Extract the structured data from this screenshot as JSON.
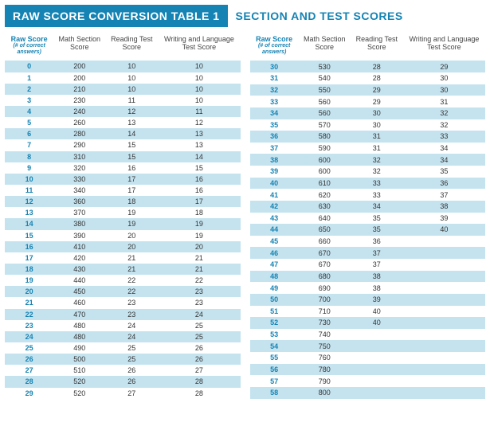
{
  "colors": {
    "brand": "#1583b3",
    "stripe": "#c4e3ef",
    "text": "#333333",
    "header_dark": "#444444"
  },
  "heading": {
    "title_boxed": "RAW SCORE CONVERSION TABLE 1",
    "title_plain": "SECTION AND TEST SCORES"
  },
  "columns": {
    "c1_main": "Raw Score",
    "c1_sub": "(# of correct answers)",
    "c2": "Math Section Score",
    "c3a": "Reading Test Score",
    "c3b": "Reading Test Score",
    "c4": "Writing and Language Test Score"
  },
  "left_rows": [
    {
      "raw": "0",
      "math": "200",
      "read": "10",
      "write": "10"
    },
    {
      "raw": "1",
      "math": "200",
      "read": "10",
      "write": "10"
    },
    {
      "raw": "2",
      "math": "210",
      "read": "10",
      "write": "10"
    },
    {
      "raw": "3",
      "math": "230",
      "read": "11",
      "write": "10"
    },
    {
      "raw": "4",
      "math": "240",
      "read": "12",
      "write": "11"
    },
    {
      "raw": "5",
      "math": "260",
      "read": "13",
      "write": "12"
    },
    {
      "raw": "6",
      "math": "280",
      "read": "14",
      "write": "13"
    },
    {
      "raw": "7",
      "math": "290",
      "read": "15",
      "write": "13"
    },
    {
      "raw": "8",
      "math": "310",
      "read": "15",
      "write": "14"
    },
    {
      "raw": "9",
      "math": "320",
      "read": "16",
      "write": "15"
    },
    {
      "raw": "10",
      "math": "330",
      "read": "17",
      "write": "16"
    },
    {
      "raw": "11",
      "math": "340",
      "read": "17",
      "write": "16"
    },
    {
      "raw": "12",
      "math": "360",
      "read": "18",
      "write": "17"
    },
    {
      "raw": "13",
      "math": "370",
      "read": "19",
      "write": "18"
    },
    {
      "raw": "14",
      "math": "380",
      "read": "19",
      "write": "19"
    },
    {
      "raw": "15",
      "math": "390",
      "read": "20",
      "write": "19"
    },
    {
      "raw": "16",
      "math": "410",
      "read": "20",
      "write": "20"
    },
    {
      "raw": "17",
      "math": "420",
      "read": "21",
      "write": "21"
    },
    {
      "raw": "18",
      "math": "430",
      "read": "21",
      "write": "21"
    },
    {
      "raw": "19",
      "math": "440",
      "read": "22",
      "write": "22"
    },
    {
      "raw": "20",
      "math": "450",
      "read": "22",
      "write": "23"
    },
    {
      "raw": "21",
      "math": "460",
      "read": "23",
      "write": "23"
    },
    {
      "raw": "22",
      "math": "470",
      "read": "23",
      "write": "24"
    },
    {
      "raw": "23",
      "math": "480",
      "read": "24",
      "write": "25"
    },
    {
      "raw": "24",
      "math": "480",
      "read": "24",
      "write": "25"
    },
    {
      "raw": "25",
      "math": "490",
      "read": "25",
      "write": "26"
    },
    {
      "raw": "26",
      "math": "500",
      "read": "25",
      "write": "26"
    },
    {
      "raw": "27",
      "math": "510",
      "read": "26",
      "write": "27"
    },
    {
      "raw": "28",
      "math": "520",
      "read": "26",
      "write": "28"
    },
    {
      "raw": "29",
      "math": "520",
      "read": "27",
      "write": "28"
    }
  ],
  "right_rows": [
    {
      "raw": "30",
      "math": "530",
      "read": "28",
      "write": "29"
    },
    {
      "raw": "31",
      "math": "540",
      "read": "28",
      "write": "30"
    },
    {
      "raw": "32",
      "math": "550",
      "read": "29",
      "write": "30"
    },
    {
      "raw": "33",
      "math": "560",
      "read": "29",
      "write": "31"
    },
    {
      "raw": "34",
      "math": "560",
      "read": "30",
      "write": "32"
    },
    {
      "raw": "35",
      "math": "570",
      "read": "30",
      "write": "32"
    },
    {
      "raw": "36",
      "math": "580",
      "read": "31",
      "write": "33"
    },
    {
      "raw": "37",
      "math": "590",
      "read": "31",
      "write": "34"
    },
    {
      "raw": "38",
      "math": "600",
      "read": "32",
      "write": "34"
    },
    {
      "raw": "39",
      "math": "600",
      "read": "32",
      "write": "35"
    },
    {
      "raw": "40",
      "math": "610",
      "read": "33",
      "write": "36"
    },
    {
      "raw": "41",
      "math": "620",
      "read": "33",
      "write": "37"
    },
    {
      "raw": "42",
      "math": "630",
      "read": "34",
      "write": "38"
    },
    {
      "raw": "43",
      "math": "640",
      "read": "35",
      "write": "39"
    },
    {
      "raw": "44",
      "math": "650",
      "read": "35",
      "write": "40"
    },
    {
      "raw": "45",
      "math": "660",
      "read": "36",
      "write": ""
    },
    {
      "raw": "46",
      "math": "670",
      "read": "37",
      "write": ""
    },
    {
      "raw": "47",
      "math": "670",
      "read": "37",
      "write": ""
    },
    {
      "raw": "48",
      "math": "680",
      "read": "38",
      "write": ""
    },
    {
      "raw": "49",
      "math": "690",
      "read": "38",
      "write": ""
    },
    {
      "raw": "50",
      "math": "700",
      "read": "39",
      "write": ""
    },
    {
      "raw": "51",
      "math": "710",
      "read": "40",
      "write": ""
    },
    {
      "raw": "52",
      "math": "730",
      "read": "40",
      "write": ""
    },
    {
      "raw": "53",
      "math": "740",
      "read": "",
      "write": ""
    },
    {
      "raw": "54",
      "math": "750",
      "read": "",
      "write": ""
    },
    {
      "raw": "55",
      "math": "760",
      "read": "",
      "write": ""
    },
    {
      "raw": "56",
      "math": "780",
      "read": "",
      "write": ""
    },
    {
      "raw": "57",
      "math": "790",
      "read": "",
      "write": ""
    },
    {
      "raw": "58",
      "math": "800",
      "read": "",
      "write": ""
    }
  ]
}
